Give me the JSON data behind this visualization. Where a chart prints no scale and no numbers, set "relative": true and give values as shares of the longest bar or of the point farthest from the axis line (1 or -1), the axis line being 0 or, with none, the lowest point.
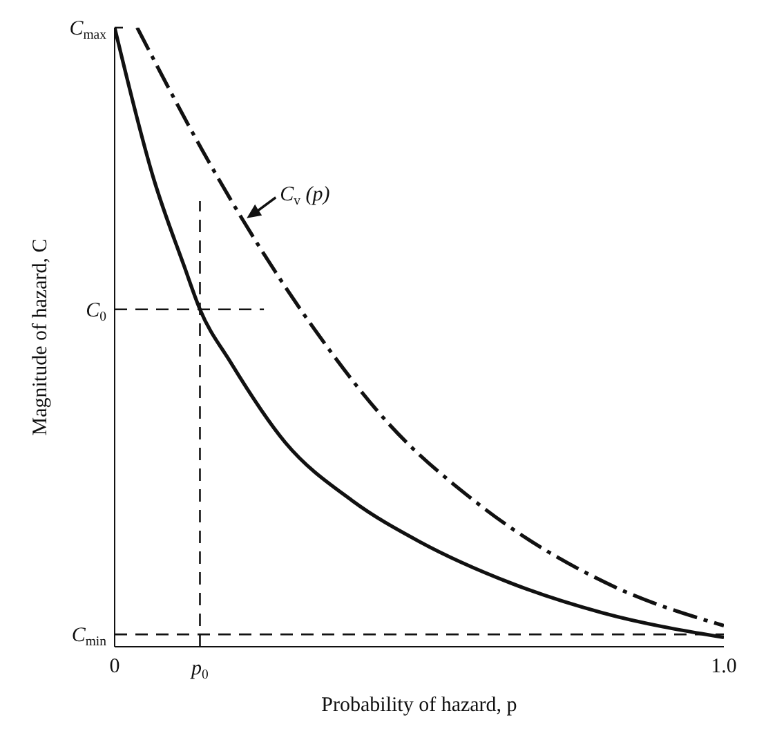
{
  "chart_data": {
    "type": "line",
    "relative": true,
    "xlabel": "Probability of hazard, p",
    "ylabel": "Magnitude of hazard, C",
    "xlim": [
      0,
      1
    ],
    "xticks": [
      0,
      {
        "value": 1,
        "label": "1.0"
      }
    ],
    "annotations": [
      {
        "text": "C$_{max}$",
        "x": 0,
        "y": 1
      }
    ],
    "ref_lines": [
      {
        "axis": "y",
        "value": 0.545,
        "label": "C$_{0}$",
        "line_style": "dashed"
      },
      {
        "axis": "y",
        "value": 0.02,
        "label": "C$_{min}$",
        "line_style": "dashed"
      },
      {
        "axis": "x",
        "value": 0.14,
        "label": "p$_{0}$",
        "line_style": "dashed"
      }
    ],
    "series": [
      {
        "color": "#111111",
        "line_style": "solid",
        "x": [
          0,
          0.064,
          0.114,
          0.14,
          0.19,
          0.28,
          0.39,
          0.5,
          0.65,
          0.8,
          1
        ],
        "values": [
          1,
          0.756,
          0.615,
          0.545,
          0.46,
          0.33,
          0.236,
          0.17,
          0.103,
          0.055,
          0.015
        ]
      },
      {
        "name": "C$_{v}$ (p)",
        "color": "#111111",
        "line_style": "dashed",
        "x": [
          0.037,
          0.145,
          0.21,
          0.33,
          0.45,
          0.59,
          0.82,
          1
        ],
        "values": [
          1,
          0.8,
          0.69,
          0.51,
          0.36,
          0.236,
          0.097,
          0.034
        ]
      }
    ]
  }
}
